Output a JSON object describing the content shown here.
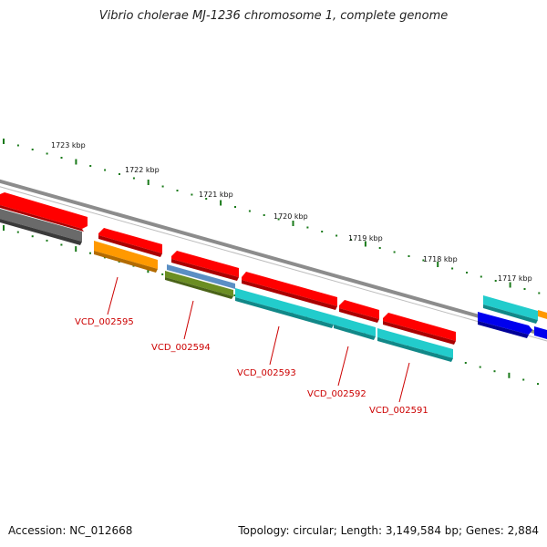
{
  "title": "Vibrio cholerae MJ-1236 chromosome 1, complete genome",
  "accession": "Accession: NC_012668",
  "summary": "Topology: circular; Length: 3,149,584 bp; Genes: 2,884",
  "kbp_labels": [
    "1723 kbp",
    "1722 kbp",
    "1721 kbp",
    "1720 kbp",
    "1719 kbp",
    "1718 kbp",
    "1717 kbp"
  ],
  "gene_labels": [
    "VCD_002595",
    "VCD_002594",
    "VCD_002593",
    "VCD_002592",
    "VCD_002591"
  ],
  "colors": {
    "red": "#ff0000",
    "gray": "#6e6e6e",
    "orange": "#ff9900",
    "steel_blue": "#5b8fc4",
    "olive": "#6b8e23",
    "cyan": "#22cccc",
    "blue": "#0000ee",
    "backbone": "#8a8a8a",
    "tick": "#1a7a1a",
    "label": "#cc0000"
  }
}
